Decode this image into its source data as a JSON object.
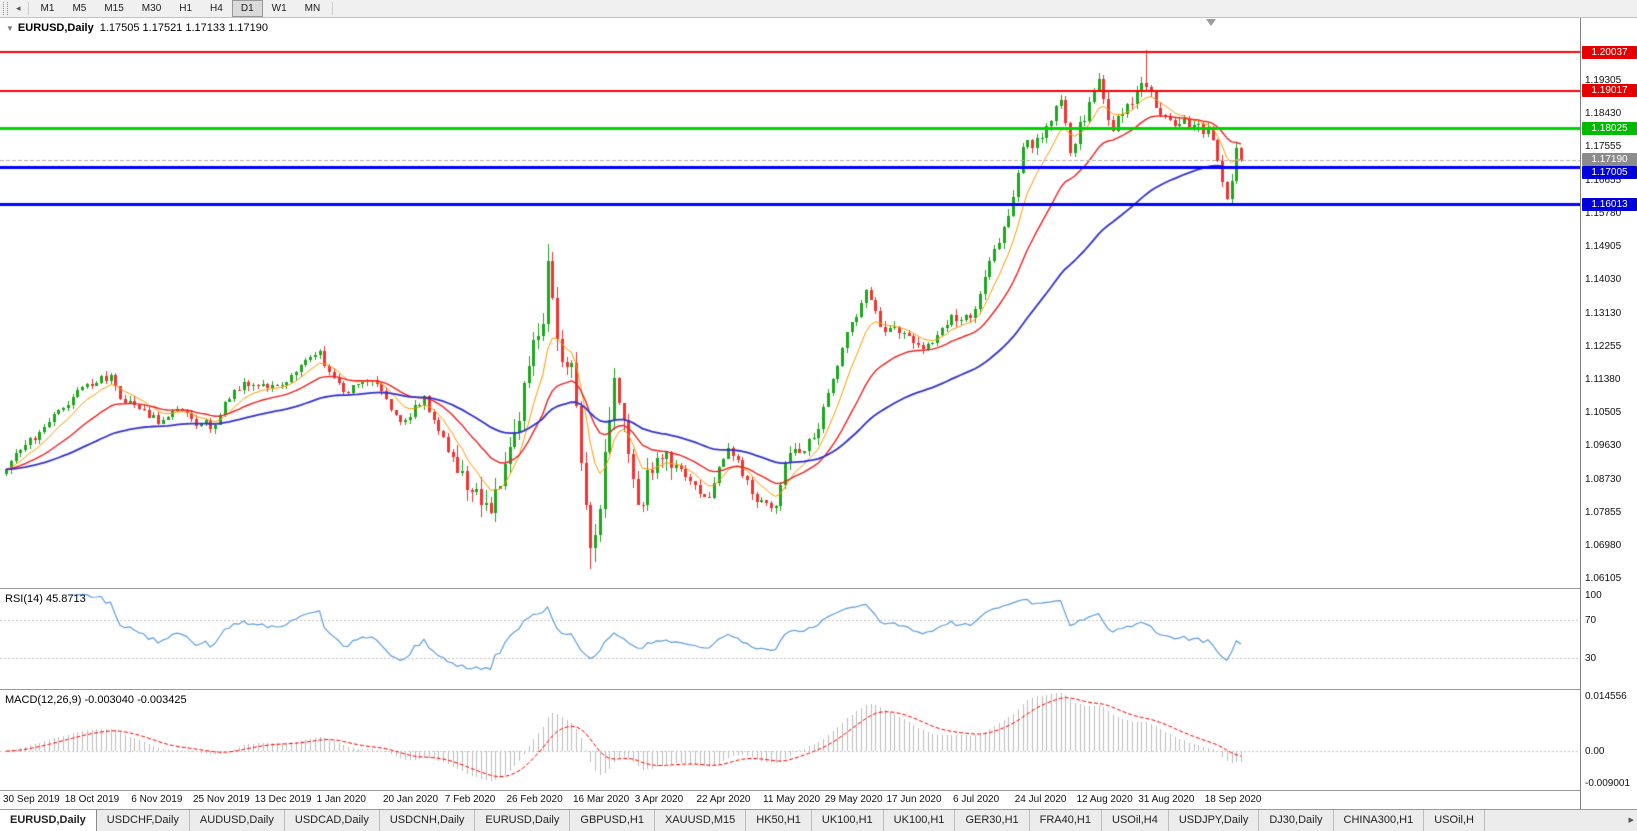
{
  "toolbar": {
    "timeframes": [
      "M1",
      "M5",
      "M15",
      "M30",
      "H1",
      "H4",
      "D1",
      "W1",
      "MN"
    ],
    "active_timeframe": "D1"
  },
  "chart": {
    "title_symbol": "EURUSD,Daily",
    "ohlc_text": "1.17505 1.17521 1.17133 1.17190",
    "price_range": {
      "min": 1.0585,
      "max": 1.2095
    },
    "price_ticks": [
      "1.19305",
      "1.18430",
      "1.17555",
      "1.16655",
      "1.15780",
      "1.14905",
      "1.14030",
      "1.13130",
      "1.12255",
      "1.11380",
      "1.10505",
      "1.09630",
      "1.08730",
      "1.07855",
      "1.06980",
      "1.06105"
    ],
    "levels": [
      {
        "price": 1.20037,
        "label": "1.20037",
        "color": "#ff0000",
        "badge_color": "#e60000",
        "width": 2
      },
      {
        "price": 1.19017,
        "label": "1.19017",
        "color": "#ff0000",
        "badge_color": "#e60000",
        "width": 2
      },
      {
        "price": 1.18025,
        "label": "1.18025",
        "color": "#00d400",
        "badge_color": "#00bb00",
        "width": 3
      },
      {
        "price": 1.17005,
        "label": "1.17005",
        "color": "#0000ff",
        "badge_color": "#0000dd",
        "width": 3
      },
      {
        "price": 1.16013,
        "label": "1.16013",
        "color": "#0000ff",
        "badge_color": "#0000dd",
        "width": 3
      }
    ],
    "current_price": {
      "value": 1.1719,
      "label": "1.17190",
      "badge_color": "#8c8c8c",
      "line_color": "#b0b0b0"
    },
    "date_labels": [
      {
        "label": "30 Sep 2019",
        "bar": 0
      },
      {
        "label": "18 Oct 2019",
        "bar": 13
      },
      {
        "label": "6 Nov 2019",
        "bar": 27
      },
      {
        "label": "25 Nov 2019",
        "bar": 40
      },
      {
        "label": "13 Dec 2019",
        "bar": 53
      },
      {
        "label": "1 Jan 2020",
        "bar": 66
      },
      {
        "label": "20 Jan 2020",
        "bar": 80
      },
      {
        "label": "7 Feb 2020",
        "bar": 93
      },
      {
        "label": "26 Feb 2020",
        "bar": 106
      },
      {
        "label": "16 Mar 2020",
        "bar": 120
      },
      {
        "label": "3 Apr 2020",
        "bar": 133
      },
      {
        "label": "22 Apr 2020",
        "bar": 146
      },
      {
        "label": "11 May 2020",
        "bar": 160
      },
      {
        "label": "29 May 2020",
        "bar": 173
      },
      {
        "label": "17 Jun 2020",
        "bar": 186
      },
      {
        "label": "6 Jul 2020",
        "bar": 200
      },
      {
        "label": "24 Jul 2020",
        "bar": 213
      },
      {
        "label": "12 Aug 2020",
        "bar": 226
      },
      {
        "label": "31 Aug 2020",
        "bar": 239
      },
      {
        "label": "18 Sep 2020",
        "bar": 253
      }
    ]
  },
  "chart_data": {
    "type": "candlestick",
    "symbol": "EURUSD",
    "timeframe": "Daily",
    "x_start": "30 Sep 2019",
    "x_end": "29 Sep 2020",
    "bars_total": 261,
    "up_color": "#1fa51f",
    "down_color": "#ee3434",
    "close_anchors": [
      [
        0,
        1.0899
      ],
      [
        4,
        1.0965
      ],
      [
        9,
        1.1025
      ],
      [
        13,
        1.107
      ],
      [
        17,
        1.1125
      ],
      [
        22,
        1.115
      ],
      [
        24,
        1.1085
      ],
      [
        27,
        1.107
      ],
      [
        32,
        1.102
      ],
      [
        36,
        1.106
      ],
      [
        40,
        1.1015
      ],
      [
        44,
        1.1018
      ],
      [
        46,
        1.1078
      ],
      [
        50,
        1.113
      ],
      [
        53,
        1.112
      ],
      [
        58,
        1.1122
      ],
      [
        62,
        1.1175
      ],
      [
        66,
        1.1213
      ],
      [
        67,
        1.1172
      ],
      [
        71,
        1.1103
      ],
      [
        77,
        1.1136
      ],
      [
        83,
        1.1024
      ],
      [
        88,
        1.1093
      ],
      [
        93,
        1.0945
      ],
      [
        98,
        1.084
      ],
      [
        102,
        1.0785
      ],
      [
        104,
        1.0854
      ],
      [
        108,
        1.1027
      ],
      [
        110,
        1.1173
      ],
      [
        113,
        1.1284
      ],
      [
        114,
        1.145
      ],
      [
        117,
        1.1184
      ],
      [
        119,
        1.118
      ],
      [
        121,
        1.0915
      ],
      [
        123,
        1.069
      ],
      [
        124,
        1.0725
      ],
      [
        127,
        1.103
      ],
      [
        128,
        1.114
      ],
      [
        130,
        1.103
      ],
      [
        133,
        1.0806
      ],
      [
        137,
        1.093
      ],
      [
        141,
        1.091
      ],
      [
        145,
        1.0858
      ],
      [
        148,
        1.0823
      ],
      [
        152,
        1.0955
      ],
      [
        157,
        1.0834
      ],
      [
        162,
        1.0801
      ],
      [
        164,
        1.0915
      ],
      [
        170,
        1.0982
      ],
      [
        173,
        1.1101
      ],
      [
        178,
        1.129
      ],
      [
        181,
        1.1374
      ],
      [
        185,
        1.1264
      ],
      [
        189,
        1.126
      ],
      [
        193,
        1.1218
      ],
      [
        195,
        1.1234
      ],
      [
        199,
        1.1309
      ],
      [
        203,
        1.13
      ],
      [
        206,
        1.141
      ],
      [
        211,
        1.157
      ],
      [
        214,
        1.1752
      ],
      [
        218,
        1.1778
      ],
      [
        222,
        1.1878
      ],
      [
        224,
        1.1738
      ],
      [
        230,
        1.1933
      ],
      [
        233,
        1.1796
      ],
      [
        238,
        1.1903
      ],
      [
        240,
        1.1911
      ],
      [
        243,
        1.1838
      ],
      [
        247,
        1.1815
      ],
      [
        251,
        1.1815
      ],
      [
        254,
        1.1772
      ],
      [
        255,
        1.1716
      ],
      [
        256,
        1.1661
      ],
      [
        257,
        1.1615
      ],
      [
        258,
        1.1663
      ],
      [
        259,
        1.17505
      ],
      [
        260,
        1.1719
      ]
    ],
    "pinned_bars": [
      {
        "bar": 114,
        "h": 1.14955
      },
      {
        "bar": 123,
        "l": 1.06359
      },
      {
        "bar": 240,
        "h": 1.20114
      },
      {
        "bar": 257,
        "l": 1.16128
      },
      {
        "bar": 260,
        "o": 1.17505,
        "h": 1.17521,
        "l": 1.17133,
        "c": 1.1719
      }
    ],
    "moving_averages": [
      {
        "period": 8,
        "color": "#ff9a00",
        "width": 1
      },
      {
        "period": 21,
        "color": "#ee2222",
        "width": 1.4
      },
      {
        "period": 55,
        "color": "#3333cc",
        "width": 1.8
      }
    ]
  },
  "rsi": {
    "label_name": "RSI(14)",
    "label_value": "45.8713",
    "period": 14,
    "levels": [
      100,
      70,
      30
    ],
    "scale_labels": [
      "100",
      "70",
      "30"
    ],
    "line_color": "#5e9edd",
    "level_line_color": "#c6c6c6"
  },
  "macd": {
    "label_name": "MACD(12,26,9)",
    "label_value": "-0.003040 -0.003425",
    "fast": 12,
    "slow": 26,
    "signal": 9,
    "scale_labels": [
      "0.014556",
      "0.00",
      "-0.009001"
    ],
    "scale_values": [
      0.014556,
      0,
      -0.009001
    ],
    "scale_max": 0.014556,
    "scale_min": -0.009001,
    "hist_color": "#bdbdbd",
    "signal_color": "#ff0000"
  },
  "tabs": {
    "active_index": 0,
    "items": [
      "EURUSD,Daily",
      "USDCHF,Daily",
      "AUDUSD,Daily",
      "USDCAD,Daily",
      "USDCNH,Daily",
      "EURUSD,Daily",
      "GBPUSD,H1",
      "XAUUSD,M15",
      "HK50,H1",
      "UK100,H1",
      "UK100,H1",
      "GER30,H1",
      "FRA40,H1",
      "USOil,H4",
      "USDJPY,Daily",
      "DJ30,Daily",
      "CHINA300,H1",
      "USOil,H"
    ],
    "scroll_right_icon": "▸"
  }
}
